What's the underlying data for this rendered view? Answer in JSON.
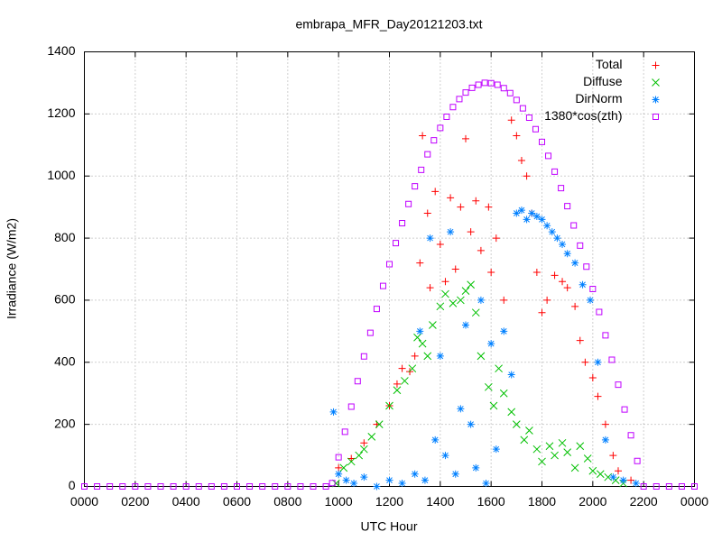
{
  "chart_data": {
    "type": "scatter",
    "title": "embrapa_MFR_Day20121203.txt",
    "x_label": "UTC Hour",
    "y_label": "Irradiance (W/m2)",
    "xlim": [
      0,
      24
    ],
    "ylim": [
      0,
      1400
    ],
    "xticks": [
      {
        "value": 0,
        "label": "0000"
      },
      {
        "value": 2,
        "label": "0200"
      },
      {
        "value": 4,
        "label": "0400"
      },
      {
        "value": 6,
        "label": "0600"
      },
      {
        "value": 8,
        "label": "0800"
      },
      {
        "value": 10,
        "label": "1000"
      },
      {
        "value": 12,
        "label": "1200"
      },
      {
        "value": 14,
        "label": "1400"
      },
      {
        "value": 16,
        "label": "1600"
      },
      {
        "value": 18,
        "label": "1800"
      },
      {
        "value": 20,
        "label": "2000"
      },
      {
        "value": 22,
        "label": "2200"
      },
      {
        "value": 24,
        "label": "0000"
      }
    ],
    "yticks": [
      0,
      200,
      400,
      600,
      800,
      1000,
      1200,
      1400
    ],
    "grid": true,
    "legend": "top-right",
    "series": [
      {
        "name": "Total",
        "color": "#ff0000",
        "marker": "plus",
        "x": [
          10.0,
          10.5,
          11.0,
          11.5,
          12.0,
          12.3,
          12.5,
          12.8,
          13.0,
          13.2,
          13.3,
          13.5,
          13.6,
          13.8,
          14.0,
          14.2,
          14.4,
          14.6,
          14.8,
          15.0,
          15.2,
          15.4,
          15.6,
          15.9,
          16.0,
          16.2,
          16.5,
          16.8,
          17.0,
          17.2,
          17.4,
          17.6,
          17.8,
          18.0,
          18.2,
          18.5,
          18.8,
          19.0,
          19.3,
          19.5,
          19.7,
          20.0,
          20.2,
          20.5,
          20.8,
          21.0,
          21.5
        ],
        "values": [
          60,
          90,
          140,
          200,
          260,
          330,
          380,
          370,
          420,
          720,
          1130,
          880,
          640,
          950,
          780,
          660,
          930,
          700,
          900,
          1120,
          820,
          920,
          760,
          900,
          690,
          800,
          600,
          1180,
          1130,
          1050,
          1000,
          880,
          690,
          560,
          600,
          680,
          660,
          640,
          580,
          470,
          400,
          350,
          290,
          200,
          100,
          50,
          20
        ]
      },
      {
        "name": "Diffuse",
        "color": "#00c000",
        "marker": "cross",
        "x": [
          9.9,
          10.2,
          10.5,
          10.8,
          11.0,
          11.3,
          11.6,
          12.0,
          12.3,
          12.6,
          12.9,
          13.1,
          13.3,
          13.5,
          13.7,
          14.0,
          14.2,
          14.5,
          14.8,
          15.0,
          15.2,
          15.4,
          15.6,
          15.9,
          16.1,
          16.3,
          16.5,
          16.8,
          17.0,
          17.3,
          17.5,
          17.8,
          18.0,
          18.3,
          18.5,
          18.8,
          19.0,
          19.3,
          19.5,
          19.8,
          20.0,
          20.3,
          20.6,
          20.9,
          21.2
        ],
        "values": [
          10,
          60,
          80,
          100,
          120,
          160,
          200,
          260,
          310,
          340,
          380,
          480,
          460,
          420,
          520,
          580,
          620,
          590,
          600,
          630,
          650,
          560,
          420,
          320,
          260,
          380,
          300,
          240,
          200,
          150,
          180,
          120,
          80,
          130,
          100,
          140,
          110,
          60,
          130,
          90,
          50,
          40,
          30,
          20,
          10
        ]
      },
      {
        "name": "DirNorm",
        "color": "#0080ff",
        "marker": "star",
        "x": [
          9.8,
          10.0,
          10.3,
          10.6,
          11.0,
          11.5,
          12.0,
          12.5,
          13.0,
          13.2,
          13.4,
          13.6,
          13.8,
          14.0,
          14.2,
          14.4,
          14.6,
          14.8,
          15.0,
          15.2,
          15.4,
          15.6,
          15.8,
          16.0,
          16.2,
          16.5,
          16.8,
          17.0,
          17.2,
          17.4,
          17.6,
          17.8,
          18.0,
          18.2,
          18.4,
          18.6,
          18.8,
          19.0,
          19.3,
          19.6,
          19.9,
          20.2,
          20.5,
          20.8,
          21.2,
          21.7
        ],
        "values": [
          240,
          40,
          20,
          10,
          30,
          0,
          20,
          10,
          40,
          500,
          20,
          800,
          150,
          420,
          100,
          820,
          40,
          250,
          520,
          200,
          60,
          600,
          10,
          460,
          120,
          500,
          360,
          880,
          890,
          860,
          880,
          870,
          860,
          840,
          820,
          800,
          780,
          750,
          720,
          650,
          600,
          400,
          150,
          30,
          20,
          10
        ]
      },
      {
        "name": "1380*cos(zth)",
        "color": "#c000ff",
        "marker": "square",
        "x": [
          0,
          0.5,
          1,
          1.5,
          2,
          2.5,
          3,
          3.5,
          4,
          4.5,
          5,
          5.5,
          6,
          6.5,
          7,
          7.5,
          8,
          8.5,
          9,
          9.5,
          9.75,
          10.0,
          10.25,
          10.5,
          10.75,
          11.0,
          11.25,
          11.5,
          11.75,
          12.0,
          12.25,
          12.5,
          12.75,
          13.0,
          13.25,
          13.5,
          13.75,
          14.0,
          14.25,
          14.5,
          14.75,
          15.0,
          15.25,
          15.5,
          15.75,
          16.0,
          16.25,
          16.5,
          16.75,
          17.0,
          17.25,
          17.5,
          17.75,
          18.0,
          18.25,
          18.5,
          18.75,
          19.0,
          19.25,
          19.5,
          19.75,
          20.0,
          20.25,
          20.5,
          20.75,
          21.0,
          21.25,
          21.5,
          21.75,
          22.0,
          22.5,
          23,
          23.5,
          24
        ],
        "values": [
          0,
          0,
          0,
          0,
          0,
          0,
          0,
          0,
          0,
          0,
          0,
          0,
          0,
          0,
          0,
          0,
          0,
          0,
          0,
          0,
          11,
          94,
          176,
          257,
          339,
          419,
          495,
          572,
          646,
          716,
          784,
          848,
          910,
          967,
          1020,
          1070,
          1115,
          1155,
          1191,
          1222,
          1248,
          1269,
          1284,
          1294,
          1300,
          1299,
          1294,
          1283,
          1267,
          1245,
          1218,
          1188,
          1151,
          1110,
          1065,
          1014,
          961,
          903,
          841,
          776,
          708,
          636,
          562,
          487,
          408,
          328,
          248,
          165,
          82,
          0,
          0,
          0,
          0,
          0
        ]
      }
    ]
  }
}
